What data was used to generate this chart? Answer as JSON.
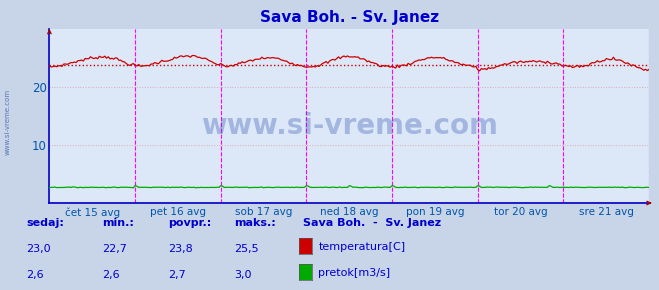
{
  "title": "Sava Boh. - Sv. Janez",
  "title_color": "#0000cc",
  "bg_color": "#c8d4e8",
  "plot_bg_color": "#dce8f8",
  "grid_color": "#c8b4c8",
  "xlabel_color": "#0055aa",
  "ylabel_color": "#0055aa",
  "x_tick_labels": [
    "čet 15 avg",
    "pet 16 avg",
    "sob 17 avg",
    "ned 18 avg",
    "pon 19 avg",
    "tor 20 avg",
    "sre 21 avg"
  ],
  "y_ticks": [
    10,
    20
  ],
  "ylim": [
    0,
    30
  ],
  "xlim": [
    0,
    336
  ],
  "temp_color": "#cc0000",
  "pretok_color": "#00aa00",
  "avg_line_color": "#cc0000",
  "avg_value": 23.8,
  "vline_color": "#ff00ff",
  "vline_positions": [
    48,
    96,
    144,
    192,
    240,
    288,
    336
  ],
  "watermark": "www.si-vreme.com",
  "watermark_color": "#2244aa",
  "legend_title": "Sava Boh.  -  Sv. Janez",
  "legend_items": [
    "temperatura[C]",
    "pretok[m3/s]"
  ],
  "legend_colors": [
    "#cc0000",
    "#00aa00"
  ],
  "table_headers": [
    "sedaj:",
    "min.:",
    "povpr.:",
    "maks.:"
  ],
  "table_temp": [
    "23,0",
    "22,7",
    "23,8",
    "25,5"
  ],
  "table_pretok": [
    "2,6",
    "2,6",
    "2,7",
    "3,0"
  ],
  "n_points": 337,
  "sidebar_text": "www.si-vreme.com",
  "sidebar_color": "#4466aa",
  "axis_color": "#0000cc",
  "arrow_color": "#aa0000"
}
